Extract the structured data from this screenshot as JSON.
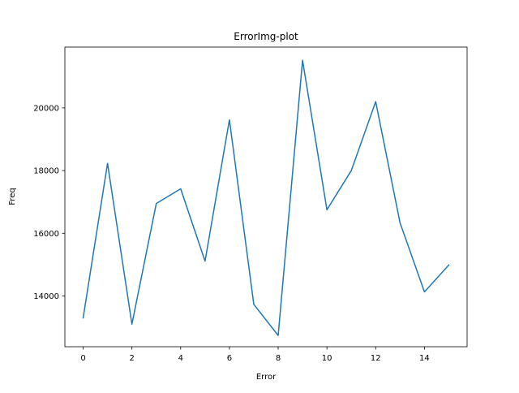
{
  "chart_data": {
    "type": "line",
    "title": "ErrorImg-plot",
    "xlabel": "Error",
    "ylabel": "Freq",
    "xlim": [
      -0.75,
      15.75
    ],
    "ylim": [
      12380,
      21940
    ],
    "x_ticks": [
      0,
      2,
      4,
      6,
      8,
      10,
      12,
      14
    ],
    "x_tick_labels": [
      "0",
      "2",
      "4",
      "6",
      "8",
      "10",
      "12",
      "14"
    ],
    "y_ticks": [
      14000,
      16000,
      18000,
      20000
    ],
    "y_tick_labels": [
      "14000",
      "16000",
      "18000",
      "20000"
    ],
    "grid": false,
    "legend": false,
    "series": [
      {
        "color": "#1f77b4",
        "x": [
          0,
          1,
          2,
          3,
          4,
          5,
          6,
          7,
          8,
          9,
          10,
          11,
          12,
          13,
          14,
          15
        ],
        "values": [
          13300,
          18230,
          13100,
          16950,
          17420,
          15110,
          19620,
          13730,
          12740,
          21520,
          16750,
          18000,
          20200,
          16330,
          14130,
          14990
        ]
      }
    ]
  }
}
